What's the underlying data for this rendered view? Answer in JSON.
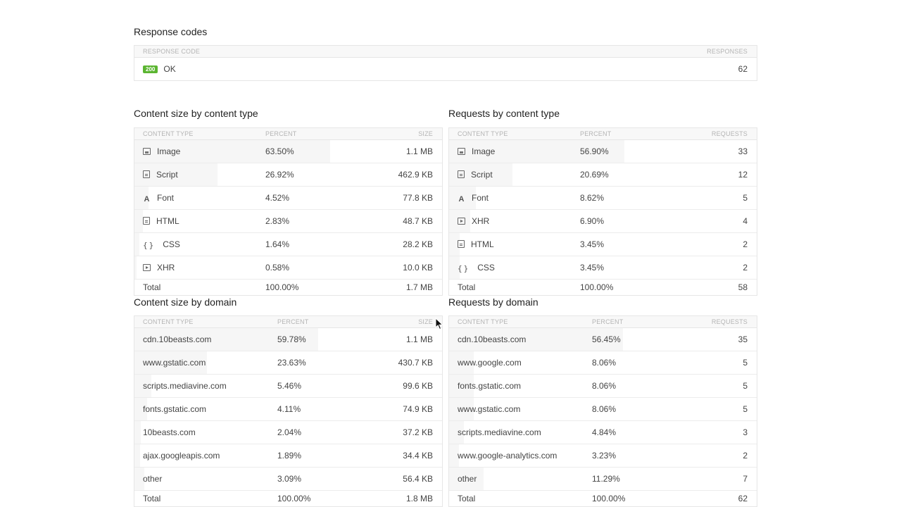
{
  "response_codes": {
    "title": "Response codes",
    "col_code": "RESPONSE CODE",
    "col_responses": "RESPONSES",
    "rows": [
      {
        "badge": "200",
        "label": "OK",
        "count": "62"
      }
    ]
  },
  "size_by_type": {
    "title": "Content size by content type",
    "col_type": "CONTENT TYPE",
    "col_percent": "PERCENT",
    "col_value": "SIZE",
    "rows": [
      {
        "icon": "image-icon",
        "label": "Image",
        "percent": "63.50%",
        "value": "1.1 MB",
        "fraction": 0.635
      },
      {
        "icon": "script-icon",
        "label": "Script",
        "percent": "26.92%",
        "value": "462.9 KB",
        "fraction": 0.2692
      },
      {
        "icon": "font-icon",
        "label": "Font",
        "percent": "4.52%",
        "value": "77.8 KB",
        "fraction": 0.0452
      },
      {
        "icon": "html-icon",
        "label": "HTML",
        "percent": "2.83%",
        "value": "48.7 KB",
        "fraction": 0.0283
      },
      {
        "icon": "css-icon",
        "label": "CSS",
        "percent": "1.64%",
        "value": "28.2 KB",
        "fraction": 0.0164
      },
      {
        "icon": "xhr-icon",
        "label": "XHR",
        "percent": "0.58%",
        "value": "10.0 KB",
        "fraction": 0.0058
      }
    ],
    "total": {
      "label": "Total",
      "percent": "100.00%",
      "value": "1.7 MB"
    }
  },
  "requests_by_type": {
    "title": "Requests by content type",
    "col_type": "CONTENT TYPE",
    "col_percent": "PERCENT",
    "col_value": "REQUESTS",
    "rows": [
      {
        "icon": "image-icon",
        "label": "Image",
        "percent": "56.90%",
        "value": "33",
        "fraction": 0.569
      },
      {
        "icon": "script-icon",
        "label": "Script",
        "percent": "20.69%",
        "value": "12",
        "fraction": 0.2069
      },
      {
        "icon": "font-icon",
        "label": "Font",
        "percent": "8.62%",
        "value": "5",
        "fraction": 0.0862
      },
      {
        "icon": "xhr-icon",
        "label": "XHR",
        "percent": "6.90%",
        "value": "4",
        "fraction": 0.069
      },
      {
        "icon": "html-icon",
        "label": "HTML",
        "percent": "3.45%",
        "value": "2",
        "fraction": 0.0345
      },
      {
        "icon": "css-icon",
        "label": "CSS",
        "percent": "3.45%",
        "value": "2",
        "fraction": 0.0345
      }
    ],
    "total": {
      "label": "Total",
      "percent": "100.00%",
      "value": "58"
    }
  },
  "size_by_domain": {
    "title": "Content size by domain",
    "col_type": "CONTENT TYPE",
    "col_percent": "PERCENT",
    "col_value": "SIZE",
    "rows": [
      {
        "label": "cdn.10beasts.com",
        "percent": "59.78%",
        "value": "1.1 MB",
        "fraction": 0.5978
      },
      {
        "label": "www.gstatic.com",
        "percent": "23.63%",
        "value": "430.7 KB",
        "fraction": 0.2363
      },
      {
        "label": "scripts.mediavine.com",
        "percent": "5.46%",
        "value": "99.6 KB",
        "fraction": 0.0546
      },
      {
        "label": "fonts.gstatic.com",
        "percent": "4.11%",
        "value": "74.9 KB",
        "fraction": 0.0411
      },
      {
        "label": "10beasts.com",
        "percent": "2.04%",
        "value": "37.2 KB",
        "fraction": 0.0204
      },
      {
        "label": "ajax.googleapis.com",
        "percent": "1.89%",
        "value": "34.4 KB",
        "fraction": 0.0189
      },
      {
        "label": "other",
        "percent": "3.09%",
        "value": "56.4 KB",
        "fraction": 0.0309
      }
    ],
    "total": {
      "label": "Total",
      "percent": "100.00%",
      "value": "1.8 MB"
    }
  },
  "requests_by_domain": {
    "title": "Requests by domain",
    "col_type": "CONTENT TYPE",
    "col_percent": "PERCENT",
    "col_value": "REQUESTS",
    "rows": [
      {
        "label": "cdn.10beasts.com",
        "percent": "56.45%",
        "value": "35",
        "fraction": 0.5645
      },
      {
        "label": "www.google.com",
        "percent": "8.06%",
        "value": "5",
        "fraction": 0.0806
      },
      {
        "label": "fonts.gstatic.com",
        "percent": "8.06%",
        "value": "5",
        "fraction": 0.0806
      },
      {
        "label": "www.gstatic.com",
        "percent": "8.06%",
        "value": "5",
        "fraction": 0.0806
      },
      {
        "label": "scripts.mediavine.com",
        "percent": "4.84%",
        "value": "3",
        "fraction": 0.0484
      },
      {
        "label": "www.google-analytics.com",
        "percent": "3.23%",
        "value": "2",
        "fraction": 0.0323
      },
      {
        "label": "other",
        "percent": "11.29%",
        "value": "7",
        "fraction": 0.1129
      }
    ],
    "total": {
      "label": "Total",
      "percent": "100.00%",
      "value": "62"
    }
  }
}
